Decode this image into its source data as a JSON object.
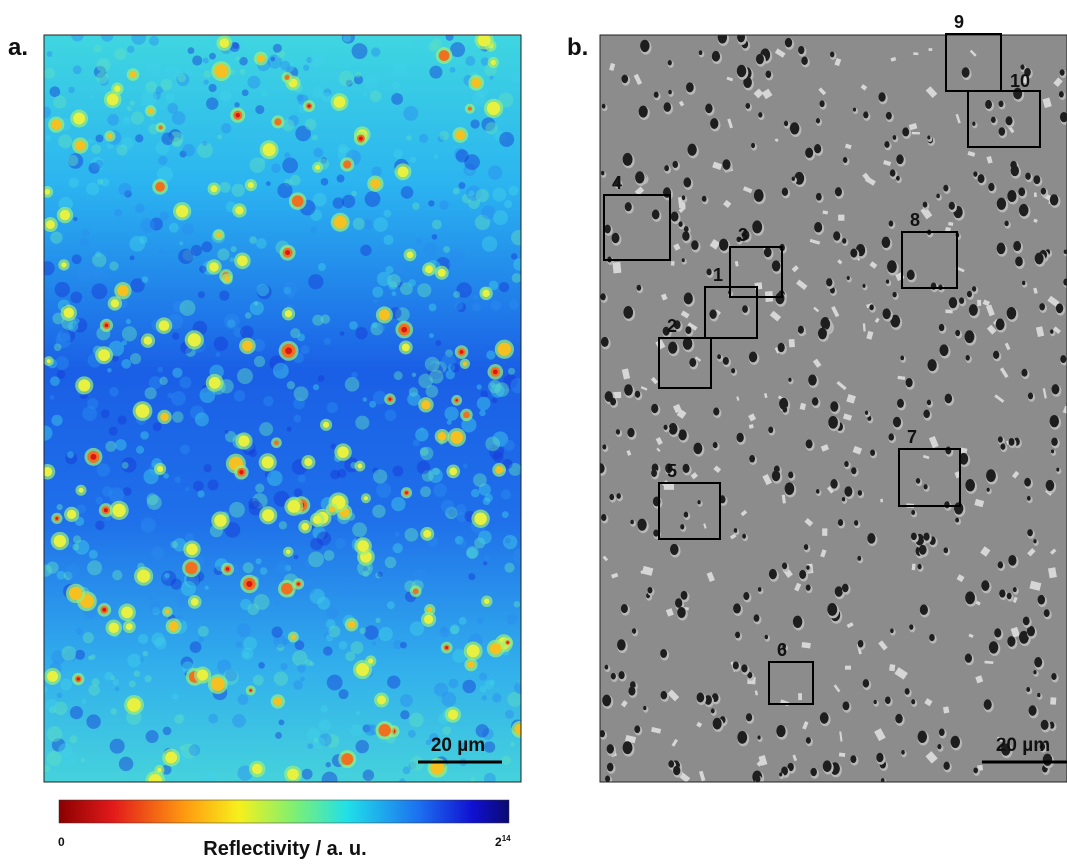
{
  "figure": {
    "panel_a": {
      "label": "a.",
      "scale_bar": "20 µm"
    },
    "panel_b": {
      "label": "b.",
      "scale_bar": "20 µm",
      "boxes": [
        "1",
        "2",
        "3",
        "4",
        "5",
        "6",
        "7",
        "8",
        "9",
        "10"
      ]
    },
    "colorbar": {
      "min": "0",
      "max_base": "2",
      "max_exponent": "14",
      "title": "Reflectivity / a. u."
    }
  }
}
